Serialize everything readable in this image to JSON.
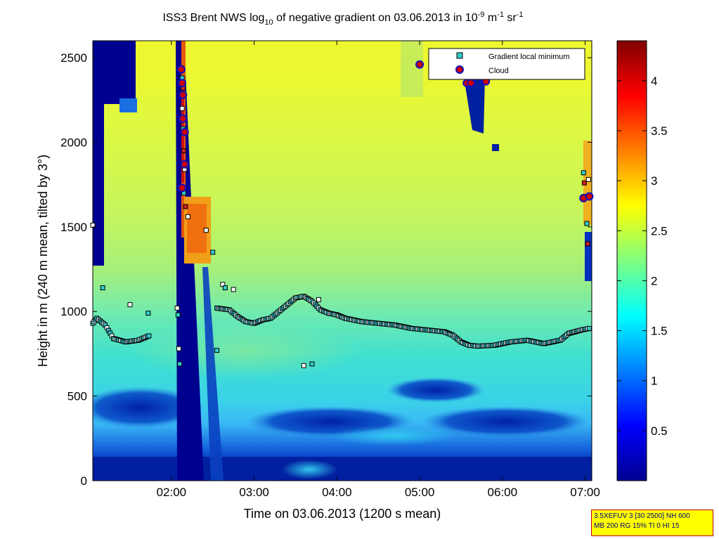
{
  "chart_data": {
    "type": "heatmap",
    "title": {
      "main": "ISS3 Brent NWS log",
      "sub": "10",
      "mid": " of negative gradient on 03.06.2013 in 10",
      "sup1": "-9",
      "mid2": " m",
      "sup2": "-1",
      "mid3": " sr",
      "sup3": "-1"
    },
    "xlabel": "Time on 03.06.2013 (1200 s mean)",
    "ylabel": "Height in m (240 m mean, tilted by 3°)",
    "x_range_hours": [
      1.05,
      7.08
    ],
    "y_range_m": [
      0,
      2600
    ],
    "x_ticks": [
      {
        "value": 2,
        "label": "02:00"
      },
      {
        "value": 3,
        "label": "03:00"
      },
      {
        "value": 4,
        "label": "04:00"
      },
      {
        "value": 5,
        "label": "05:00"
      },
      {
        "value": 6,
        "label": "06:00"
      },
      {
        "value": 7,
        "label": "07:00"
      }
    ],
    "y_ticks": [
      {
        "value": 0,
        "label": "0"
      },
      {
        "value": 500,
        "label": "500"
      },
      {
        "value": 1000,
        "label": "1000"
      },
      {
        "value": 1500,
        "label": "1500"
      },
      {
        "value": 2000,
        "label": "2000"
      },
      {
        "value": 2500,
        "label": "2500"
      }
    ],
    "colorbar": {
      "range": [
        0,
        4.4
      ],
      "ticks": [
        {
          "value": 0.5,
          "label": "0.5"
        },
        {
          "value": 1,
          "label": "1"
        },
        {
          "value": 1.5,
          "label": "1.5"
        },
        {
          "value": 2,
          "label": "2"
        },
        {
          "value": 2.5,
          "label": "2.5"
        },
        {
          "value": 3,
          "label": "3"
        },
        {
          "value": 3.5,
          "label": "3.5"
        },
        {
          "value": 4,
          "label": "4"
        }
      ]
    },
    "legend": {
      "placement": "top-right",
      "entries": [
        {
          "label": "Gradient local minimum",
          "marker": "square",
          "color": "#33cccc"
        },
        {
          "label": "Cloud",
          "marker": "circle",
          "color": "#cc0000"
        }
      ]
    },
    "gradient_minimum_series": [
      [
        1.05,
        930
      ],
      [
        1.1,
        960
      ],
      [
        1.2,
        920
      ],
      [
        1.3,
        840
      ],
      [
        1.45,
        820
      ],
      [
        1.6,
        830
      ],
      [
        1.75,
        860
      ],
      [
        2.55,
        1020
      ],
      [
        2.7,
        1010
      ],
      [
        2.8,
        970
      ],
      [
        2.9,
        940
      ],
      [
        3.0,
        930
      ],
      [
        3.1,
        950
      ],
      [
        3.2,
        960
      ],
      [
        3.3,
        1000
      ],
      [
        3.4,
        1040
      ],
      [
        3.5,
        1080
      ],
      [
        3.6,
        1090
      ],
      [
        3.7,
        1060
      ],
      [
        3.8,
        1010
      ],
      [
        3.9,
        990
      ],
      [
        4.0,
        980
      ],
      [
        4.1,
        960
      ],
      [
        4.2,
        950
      ],
      [
        4.3,
        940
      ],
      [
        4.5,
        930
      ],
      [
        4.7,
        920
      ],
      [
        4.9,
        900
      ],
      [
        5.1,
        890
      ],
      [
        5.3,
        880
      ],
      [
        5.4,
        860
      ],
      [
        5.5,
        820
      ],
      [
        5.6,
        800
      ],
      [
        5.7,
        795
      ],
      [
        5.9,
        800
      ],
      [
        6.1,
        820
      ],
      [
        6.3,
        830
      ],
      [
        6.5,
        810
      ],
      [
        6.7,
        830
      ],
      [
        6.8,
        870
      ],
      [
        6.95,
        890
      ],
      [
        7.05,
        900
      ]
    ],
    "gradient_minimum_scatter": [
      [
        1.05,
        1510
      ],
      [
        1.17,
        1140
      ],
      [
        1.5,
        1040
      ],
      [
        1.72,
        990
      ],
      [
        2.07,
        1020
      ],
      [
        2.08,
        980
      ],
      [
        2.09,
        780
      ],
      [
        2.1,
        690
      ],
      [
        2.62,
        1160
      ],
      [
        2.65,
        1140
      ],
      [
        2.75,
        1130
      ],
      [
        2.55,
        770
      ],
      [
        3.6,
        680
      ],
      [
        3.7,
        690
      ],
      [
        3.78,
        1070
      ],
      [
        2.5,
        1350
      ],
      [
        2.42,
        1480
      ]
    ],
    "gradient_minimum_column": [
      [
        2.12,
        2440
      ],
      [
        2.13,
        2380
      ],
      [
        2.14,
        2320
      ],
      [
        2.13,
        2200
      ],
      [
        2.14,
        2080
      ],
      [
        2.15,
        1950
      ],
      [
        2.16,
        1840
      ],
      [
        2.15,
        1700
      ],
      [
        2.17,
        1620
      ],
      [
        2.2,
        1560
      ],
      [
        6.98,
        1820
      ],
      [
        6.99,
        1760
      ],
      [
        7.0,
        1680
      ],
      [
        7.02,
        1520
      ],
      [
        7.03,
        1400
      ],
      [
        7.04,
        1780
      ]
    ],
    "cloud_points": [
      [
        2.12,
        2430
      ],
      [
        2.13,
        2350
      ],
      [
        2.14,
        2280
      ],
      [
        2.14,
        2140
      ],
      [
        2.16,
        2060
      ],
      [
        2.16,
        1870
      ],
      [
        2.13,
        1730
      ],
      [
        5.0,
        2460
      ],
      [
        5.57,
        2350
      ],
      [
        5.62,
        2350
      ],
      [
        5.8,
        2360
      ],
      [
        6.98,
        1670
      ],
      [
        7.05,
        1680
      ]
    ]
  },
  "info_box": {
    "line1": "3.5XEFUV 3 [30 2500] NH 600",
    "line2": "MB 200 RG 15% TI 0 HI 15"
  }
}
